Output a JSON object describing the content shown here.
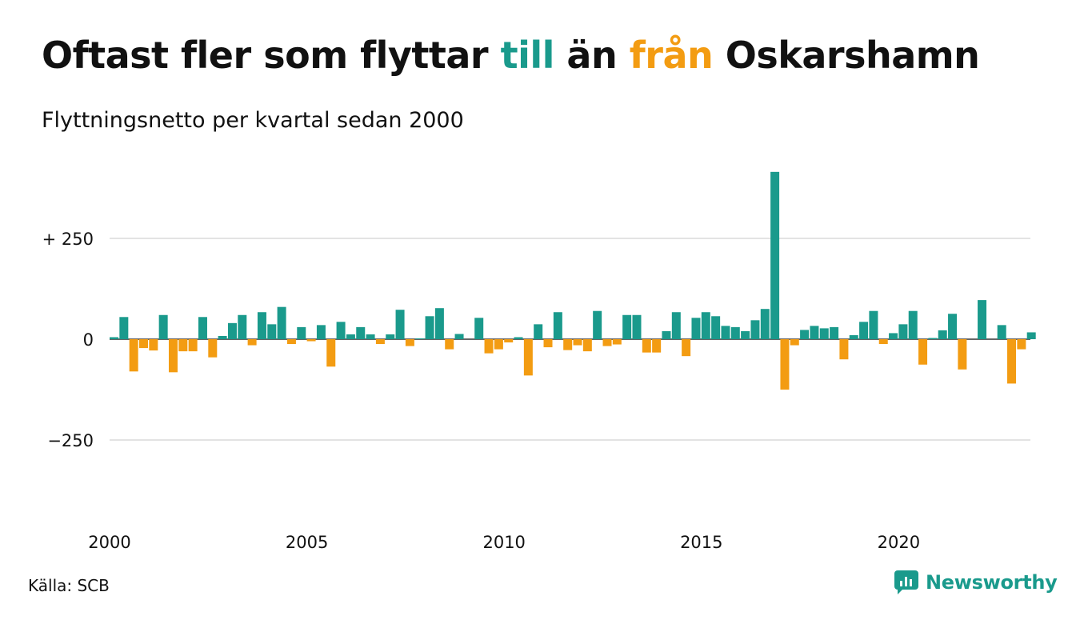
{
  "title": {
    "part1": "Oftast fler som flyttar ",
    "highlight_pos": "till",
    "part2": " än ",
    "highlight_neg": "från",
    "part3": " Oskarshamn"
  },
  "subtitle": "Flyttningsnetto per kvartal sedan 2000",
  "source": "Källa: SCB",
  "brand": "Newsworthy",
  "colors": {
    "positive": "#1a9a8c",
    "negative": "#f39c12",
    "grid": "#e3e3e3",
    "axis": "#333333"
  },
  "chart_data": {
    "type": "bar",
    "ylim": [
      -420,
      420
    ],
    "yticks": [
      {
        "value": 250,
        "label": "+ 250"
      },
      {
        "value": 0,
        "label": "0"
      },
      {
        "value": -250,
        "label": "−250"
      }
    ],
    "xticks": [
      {
        "year": 2000,
        "label": "2000"
      },
      {
        "year": 2005,
        "label": "2005"
      },
      {
        "year": 2010,
        "label": "2010"
      },
      {
        "year": 2015,
        "label": "2015"
      },
      {
        "year": 2020,
        "label": "2020"
      }
    ],
    "x_start_year": 2000,
    "values": [
      5,
      55,
      -80,
      -22,
      -28,
      60,
      -82,
      -30,
      -30,
      55,
      -45,
      8,
      40,
      60,
      -15,
      67,
      37,
      80,
      -12,
      30,
      -5,
      35,
      -68,
      43,
      12,
      30,
      12,
      -12,
      12,
      73,
      -17,
      2,
      57,
      77,
      -25,
      13,
      0,
      53,
      -35,
      -25,
      -8,
      5,
      -90,
      37,
      -20,
      67,
      -27,
      -15,
      -30,
      70,
      -17,
      -13,
      60,
      60,
      -33,
      -33,
      20,
      67,
      -42,
      53,
      67,
      57,
      33,
      30,
      20,
      47,
      75,
      415,
      -125,
      -15,
      23,
      33,
      27,
      30,
      -50,
      10,
      43,
      70,
      -12,
      15,
      37,
      70,
      -63,
      3,
      22,
      63,
      -75,
      0,
      97,
      0,
      35,
      -110,
      -25,
      17
    ]
  }
}
